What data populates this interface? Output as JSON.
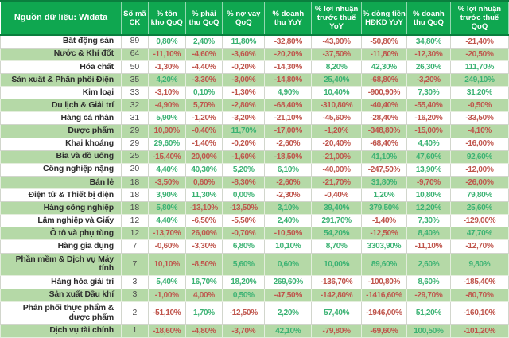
{
  "source_label": "Nguồn dữ liệu: Widata",
  "columns": [
    "Số mã CK",
    "% tồn kho QoQ",
    "% phải thu QoQ",
    "% nợ vay QoQ",
    "% doanh thu YoY",
    "% lợi nhuận trước thuế YoY",
    "% dòng tiền HĐKD YoY",
    "% doanh thu QoQ",
    "% lợi nhuận trước thuế QoQ"
  ],
  "colors": {
    "header_bg": "#0fa750",
    "header_border": "#0a7f3e",
    "header_text": "#ffffff",
    "row_alt_bg": "#b5d9a7",
    "positive": "#3bb273",
    "negative": "#bf544b",
    "label_text": "#2e2e2e",
    "count_text": "#4d4d4d",
    "border": "#d2d6cd"
  },
  "rows": [
    {
      "label": "Bất động sản",
      "count": "89",
      "values": [
        "0,80%",
        "2,40%",
        "11,80%",
        "-32,80%",
        "-43,90%",
        "-50,80%",
        "34,80%",
        "-21,40%"
      ]
    },
    {
      "label": "Nước & Khí đốt",
      "count": "64",
      "values": [
        "-11,10%",
        "-4,60%",
        "-3,60%",
        "-20,20%",
        "-37,50%",
        "-11,80%",
        "-12,30%",
        "-20,50%"
      ]
    },
    {
      "label": "Hóa chất",
      "count": "50",
      "values": [
        "-1,30%",
        "-4,40%",
        "-0,20%",
        "-14,30%",
        "8,20%",
        "42,30%",
        "26,30%",
        "111,70%"
      ]
    },
    {
      "label": "Sản xuất & Phân phối Điện",
      "count": "35",
      "values": [
        "4,20%",
        "-3,30%",
        "-3,00%",
        "-14,80%",
        "25,40%",
        "-68,80%",
        "-3,20%",
        "249,10%"
      ]
    },
    {
      "label": "Kim loại",
      "count": "33",
      "values": [
        "-3,10%",
        "0,10%",
        "-1,30%",
        "4,90%",
        "10,40%",
        "-900,90%",
        "7,30%",
        "31,20%"
      ]
    },
    {
      "label": "Du lịch & Giải trí",
      "count": "32",
      "values": [
        "-4,90%",
        "5,70%",
        "-2,80%",
        "-68,40%",
        "-310,80%",
        "-40,40%",
        "-55,40%",
        "-0,50%"
      ]
    },
    {
      "label": "Hàng cá nhân",
      "count": "31",
      "values": [
        "5,90%",
        "-1,20%",
        "-3,20%",
        "-21,10%",
        "-45,60%",
        "-28,40%",
        "-16,20%",
        "-33,50%"
      ]
    },
    {
      "label": "Dược phẩm",
      "count": "29",
      "values": [
        "10,90%",
        "-0,40%",
        "11,70%",
        "-17,00%",
        "-1,20%",
        "-348,80%",
        "-15,00%",
        "-4,10%"
      ]
    },
    {
      "label": "Khai khoáng",
      "count": "29",
      "values": [
        "29,60%",
        "-1,40%",
        "-0,20%",
        "-2,60%",
        "-20,40%",
        "-68,40%",
        "4,40%",
        "-16,00%"
      ]
    },
    {
      "label": "Bia và đồ uống",
      "count": "25",
      "values": [
        "-15,40%",
        "20,00%",
        "-1,60%",
        "-18,50%",
        "-21,00%",
        "41,10%",
        "47,60%",
        "92,60%"
      ]
    },
    {
      "label": "Công nghiệp nặng",
      "count": "20",
      "values": [
        "4,40%",
        "40,30%",
        "5,20%",
        "6,10%",
        "-40,00%",
        "-247,50%",
        "13,90%",
        "-12,00%"
      ]
    },
    {
      "label": "Bán lẻ",
      "count": "18",
      "values": [
        "-3,50%",
        "0,60%",
        "-8,30%",
        "-2,60%",
        "-21,70%",
        "31,80%",
        "-9,70%",
        "-26,00%"
      ]
    },
    {
      "label": "Điện tử & Thiết bị điện",
      "count": "18",
      "values": [
        "3,90%",
        "11,30%",
        "0,00%",
        "-2,30%",
        "-0,40%",
        "1,20%",
        "10,80%",
        "79,80%"
      ]
    },
    {
      "label": "Hàng công nghiệp",
      "count": "18",
      "values": [
        "5,80%",
        "-13,10%",
        "-13,50%",
        "3,10%",
        "39,40%",
        "379,50%",
        "12,20%",
        "25,60%"
      ]
    },
    {
      "label": "Lâm nghiệp và Giấy",
      "count": "12",
      "values": [
        "4,40%",
        "-6,50%",
        "-5,50%",
        "2,40%",
        "291,70%",
        "-1,40%",
        "7,30%",
        "-129,00%"
      ]
    },
    {
      "label": "Ô tô và phụ tùng",
      "count": "12",
      "values": [
        "-13,70%",
        "26,00%",
        "-0,70%",
        "-10,50%",
        "54,20%",
        "-12,50%",
        "8,40%",
        "47,70%"
      ]
    },
    {
      "label": "Hàng gia dụng",
      "count": "7",
      "values": [
        "-0,60%",
        "-3,30%",
        "6,80%",
        "10,10%",
        "8,70%",
        "3303,90%",
        "-11,10%",
        "-12,70%"
      ]
    },
    {
      "label": "Phần mềm & Dịch vụ Máy tính",
      "count": "7",
      "values": [
        "10,10%",
        "-8,50%",
        "5,60%",
        "0,60%",
        "10,00%",
        "89,60%",
        "2,60%",
        "9,80%"
      ]
    },
    {
      "label": "Hàng hóa giải trí",
      "count": "3",
      "values": [
        "5,40%",
        "16,70%",
        "18,20%",
        "269,60%",
        "-136,70%",
        "-100,80%",
        "8,60%",
        "-185,40%"
      ]
    },
    {
      "label": "Sản xuất Dầu khí",
      "count": "3",
      "values": [
        "-1,00%",
        "4,00%",
        "0,50%",
        "-47,50%",
        "-142,80%",
        "-1416,60%",
        "-29,70%",
        "-80,70%"
      ]
    },
    {
      "label": "Phân phối thực phẩm & dược phẩm",
      "count": "2",
      "values": [
        "-51,10%",
        "1,70%",
        "-12,50%",
        "2,20%",
        "57,40%",
        "-1946,00%",
        "51,20%",
        "-160,10%"
      ]
    },
    {
      "label": "Dịch vụ tài chính",
      "count": "1",
      "values": [
        "-18,60%",
        "-4,80%",
        "-3,70%",
        "42,10%",
        "-79,80%",
        "-69,60%",
        "100,50%",
        "-101,20%"
      ]
    }
  ],
  "red_overrides": [
    {
      "row": 5,
      "col": 1
    },
    {
      "row": 7,
      "col": 0
    },
    {
      "row": 9,
      "col": 1
    },
    {
      "row": 11,
      "col": 1
    },
    {
      "row": 15,
      "col": 1
    },
    {
      "row": 17,
      "col": 0
    },
    {
      "row": 19,
      "col": 1
    }
  ]
}
